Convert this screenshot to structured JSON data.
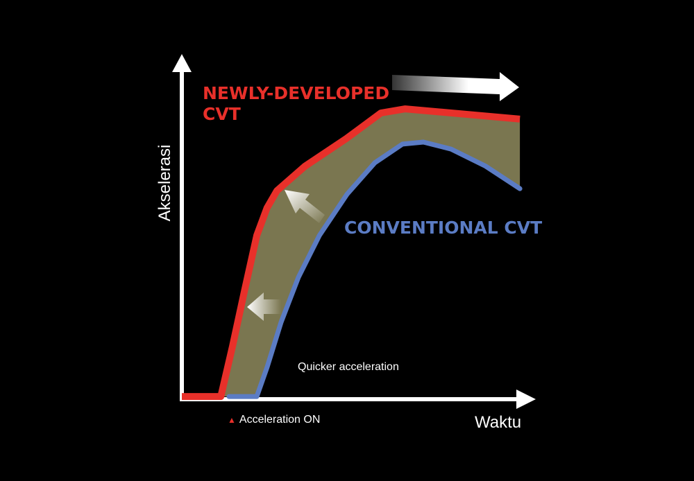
{
  "chart_data": {
    "type": "line",
    "title": "",
    "xlabel": "Waktu",
    "ylabel": "Akselerasi",
    "xlim": [
      0,
      100
    ],
    "ylim": [
      0,
      100
    ],
    "grid": false,
    "series": [
      {
        "name": "NEWLY-DEVELOPED CVT",
        "color": "#e8302a",
        "x": [
          0,
          11.4,
          14.8,
          18.3,
          21.9,
          24.9,
          27.8,
          36,
          48.1,
          58.2,
          65.3,
          98.8
        ],
        "y": [
          0.7,
          0.7,
          17.9,
          36.9,
          56,
          65.5,
          71.4,
          79.8,
          89.3,
          98.1,
          99.5,
          96
        ]
      },
      {
        "name": "CONVENTIONAL CVT",
        "color": "#5b7cc4",
        "x": [
          13.8,
          21.9,
          24.9,
          29,
          34.1,
          40.2,
          48.3,
          56.4,
          64.5,
          70.6,
          78.7,
          88.8,
          98.8
        ],
        "y": [
          0.7,
          0.7,
          10.7,
          26.2,
          41.7,
          56,
          70.2,
          81,
          87.4,
          88.1,
          85.7,
          79.8,
          72.1
        ]
      }
    ],
    "band_color": "#7a7650",
    "annotations": {
      "red_label_line1": "NEWLY-DEVELOPED",
      "red_label_line2": "CVT",
      "blue_label": "CONVENTIONAL CVT",
      "quicker": "Quicker acceleration",
      "acc_on": "Acceleration ON",
      "acc_on_marker": "▲"
    }
  }
}
